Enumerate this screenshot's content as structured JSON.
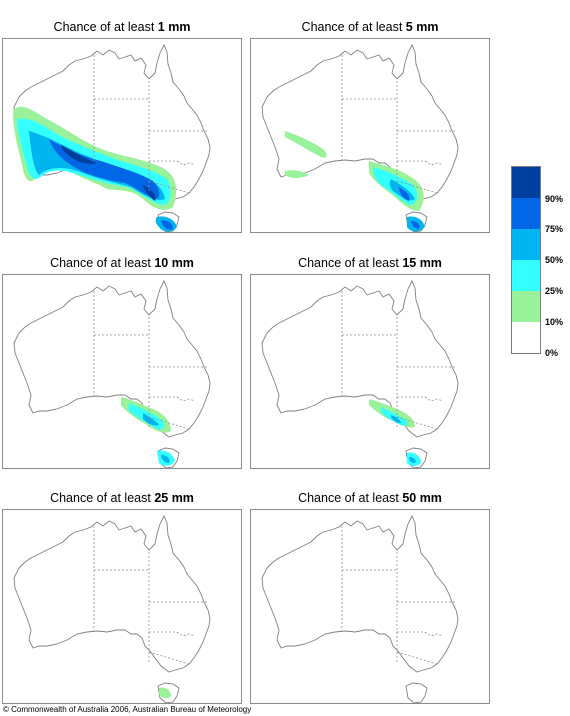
{
  "panels": [
    {
      "prefix": "Chance of at least",
      "amount": "1 mm"
    },
    {
      "prefix": "Chance of at least",
      "amount": "5 mm"
    },
    {
      "prefix": "Chance of at least",
      "amount": "10 mm"
    },
    {
      "prefix": "Chance of at least",
      "amount": "15 mm"
    },
    {
      "prefix": "Chance of at least",
      "amount": "25 mm"
    },
    {
      "prefix": "Chance of at least",
      "amount": "50 mm"
    }
  ],
  "legend": {
    "labels": [
      "90%",
      "75%",
      "50%",
      "25%",
      "10%",
      "0%"
    ],
    "colors": [
      "#003f9e",
      "#0066e6",
      "#00b4f0",
      "#33ffff",
      "#99f199",
      "#ffffff"
    ]
  },
  "map_colors": {
    "outline": "#7f7f7f",
    "borders": "#8c8c8c",
    "c10": "#99f199",
    "c25": "#33ffff",
    "c50": "#00b4f0",
    "c75": "#0066e6",
    "c90": "#003f9e"
  },
  "footer": "© Commonwealth of Australia 2006, Australian Bureau of Meteorology"
}
